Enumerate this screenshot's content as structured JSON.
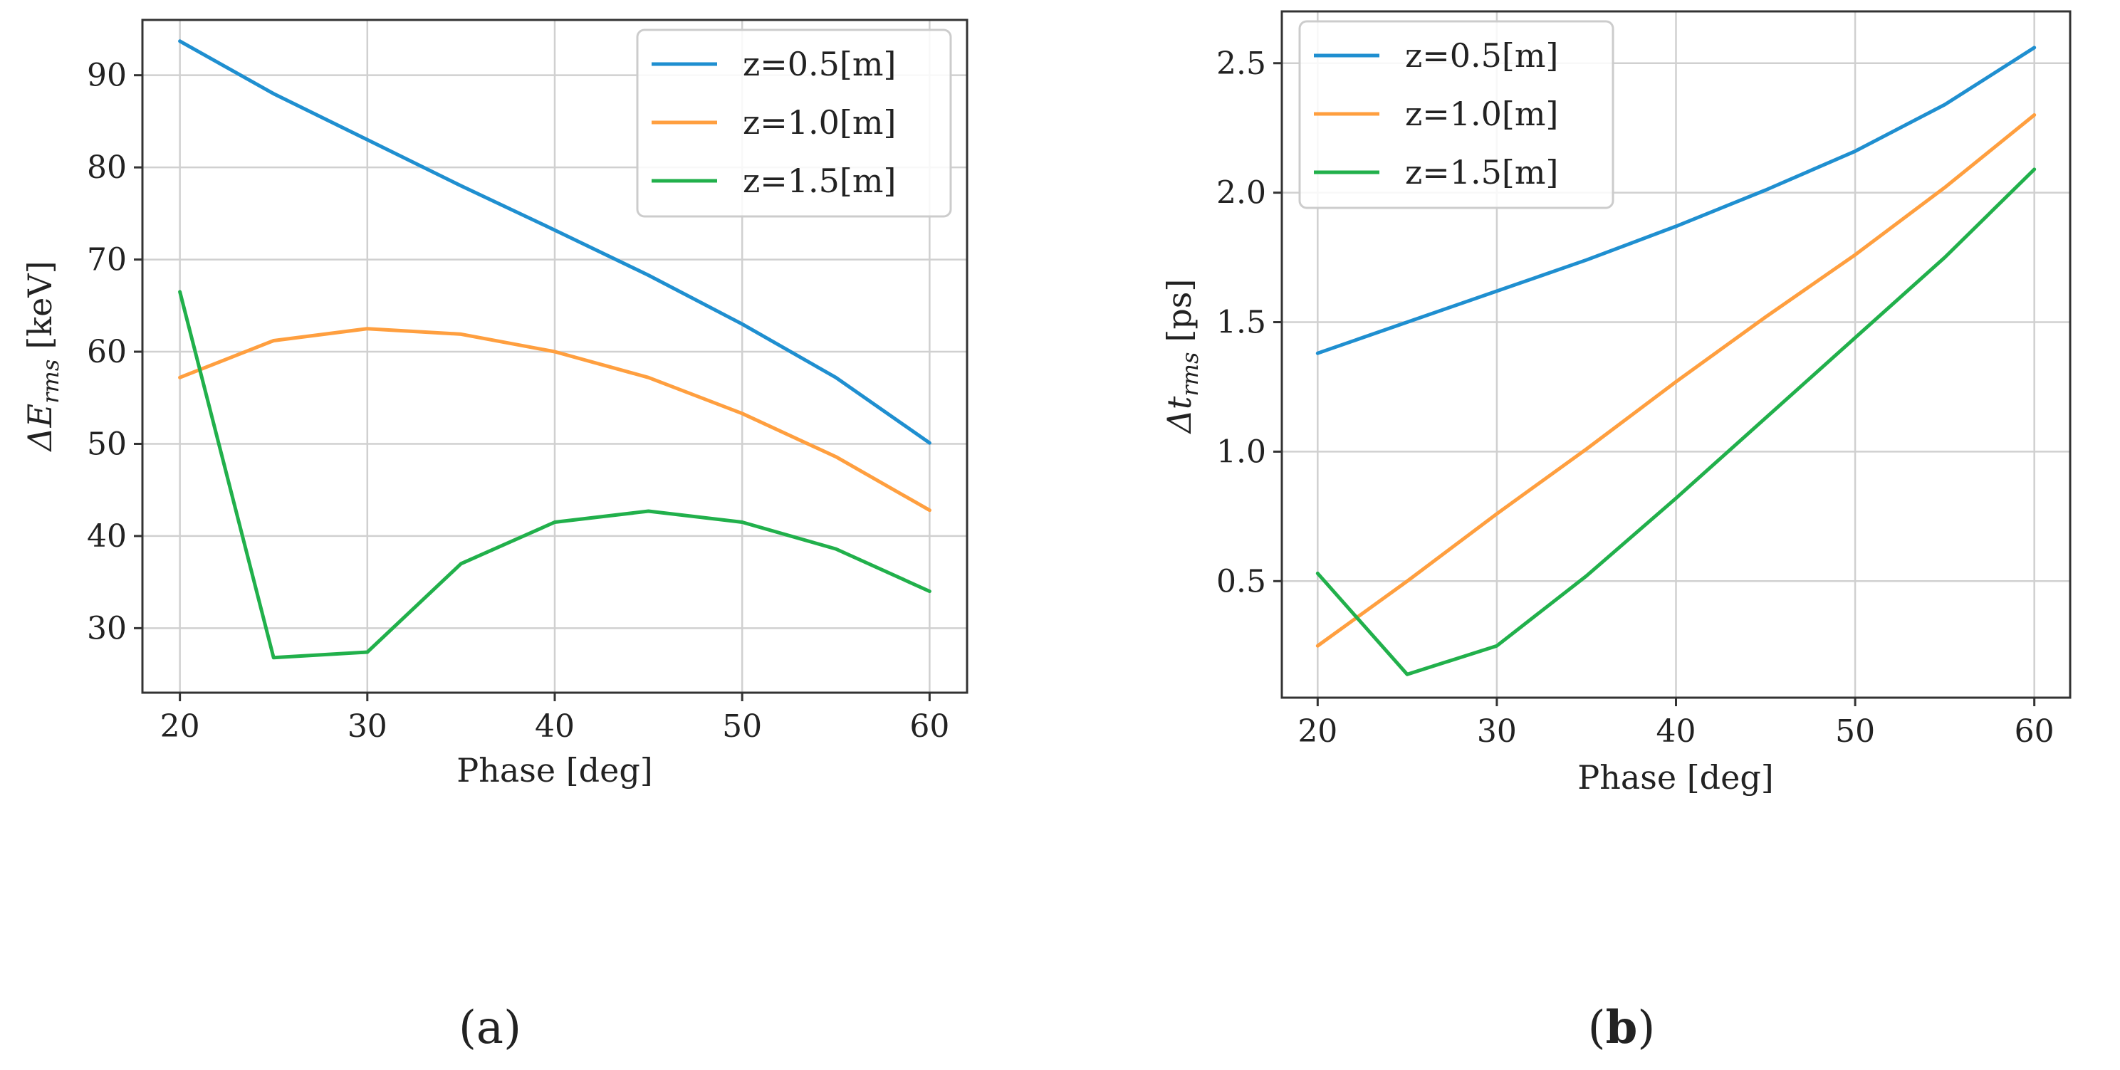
{
  "chart_data": [
    {
      "type": "line",
      "panel_label": "a",
      "title": "",
      "xlabel": "Phase [deg]",
      "ylabel_main": "ΔE",
      "ylabel_sub": "rms",
      "ylabel_unit": "[keV]",
      "x": [
        20,
        25,
        30,
        35,
        40,
        45,
        50,
        55,
        60
      ],
      "xlim": [
        18,
        62
      ],
      "ylim": [
        23,
        96
      ],
      "xticks": [
        20,
        30,
        40,
        50,
        60
      ],
      "yticks": [
        30,
        40,
        50,
        60,
        70,
        80,
        90
      ],
      "legend_position": "top-right",
      "series": [
        {
          "name": "z=0.5[m]",
          "color": "#1f8fd0",
          "values": [
            93.7,
            88.0,
            83.0,
            78.0,
            73.2,
            68.3,
            63.0,
            57.2,
            50.1
          ]
        },
        {
          "name": "z=1.0[m]",
          "color": "#ff9f3f",
          "values": [
            57.2,
            61.2,
            62.5,
            61.9,
            60.0,
            57.2,
            53.3,
            48.6,
            42.8
          ]
        },
        {
          "name": "z=1.5[m]",
          "color": "#21b04b",
          "values": [
            66.5,
            26.8,
            27.4,
            37.0,
            41.5,
            42.7,
            41.5,
            38.6,
            34.0
          ]
        }
      ]
    },
    {
      "type": "line",
      "panel_label": "b",
      "title": "",
      "xlabel": "Phase [deg]",
      "ylabel_main": "Δt",
      "ylabel_sub": "rms",
      "ylabel_unit": "[ps]",
      "x": [
        20,
        25,
        30,
        35,
        40,
        45,
        50,
        55,
        60
      ],
      "xlim": [
        18,
        62
      ],
      "ylim": [
        0.05,
        2.7
      ],
      "xticks": [
        20,
        30,
        40,
        50,
        60
      ],
      "yticks": [
        0.5,
        1.0,
        1.5,
        2.0,
        2.5
      ],
      "ytick_labels": [
        "0.5",
        "1.0",
        "1.5",
        "2.0",
        "2.5"
      ],
      "legend_position": "top-left",
      "series": [
        {
          "name": "z=0.5[m]",
          "color": "#1f8fd0",
          "values": [
            1.38,
            1.5,
            1.62,
            1.74,
            1.87,
            2.01,
            2.16,
            2.34,
            2.56
          ]
        },
        {
          "name": "z=1.0[m]",
          "color": "#ff9f3f",
          "values": [
            0.25,
            0.5,
            0.76,
            1.01,
            1.27,
            1.52,
            1.76,
            2.02,
            2.3
          ]
        },
        {
          "name": "z=1.5[m]",
          "color": "#21b04b",
          "values": [
            0.53,
            0.14,
            0.25,
            0.52,
            0.82,
            1.13,
            1.44,
            1.75,
            2.09
          ]
        }
      ]
    }
  ]
}
